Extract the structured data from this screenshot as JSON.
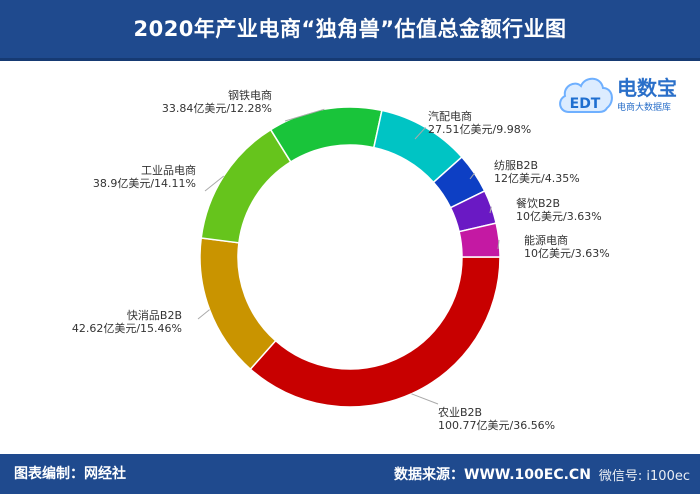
{
  "header": {
    "title": "2020年产业电商“独角兽”估值总金额行业图"
  },
  "logo": {
    "brand": "电数宝",
    "tagline": "电商大数据库",
    "icon": "cloud-edt-icon",
    "mark": "EDT"
  },
  "footer": {
    "left": "图表编制：网经社",
    "right": "数据来源：WWW.100EC.CN",
    "wechat": "微信号: i100ec"
  },
  "colors": {
    "header_bg": "#1f4a8e"
  },
  "chart_data": {
    "type": "pie",
    "donut": true,
    "title": "2020年产业电商“独角兽”估值总金额行业图",
    "slices": [
      {
        "name": "农业B2B",
        "label": "100.77亿美元/36.56%",
        "value": 100.77,
        "percent": 36.56,
        "color": "#c80000"
      },
      {
        "name": "快消品B2B",
        "label": "42.62亿美元/15.46%",
        "value": 42.62,
        "percent": 15.46,
        "color": "#c99400"
      },
      {
        "name": "工业品电商",
        "label": "38.9亿美元/14.11%",
        "value": 38.9,
        "percent": 14.11,
        "color": "#66c41c"
      },
      {
        "name": "钢铁电商",
        "label": "33.84亿美元/12.28%",
        "value": 33.84,
        "percent": 12.28,
        "color": "#19c43a"
      },
      {
        "name": "汽配电商",
        "label": "27.51亿美元/9.98%",
        "value": 27.51,
        "percent": 9.98,
        "color": "#00c4c4"
      },
      {
        "name": "纺服B2B",
        "label": "12亿美元/4.35%",
        "value": 12,
        "percent": 4.35,
        "color": "#0d3fc4"
      },
      {
        "name": "餐饮B2B",
        "label": "10亿美元/3.63%",
        "value": 10,
        "percent": 3.63,
        "color": "#6a19c4"
      },
      {
        "name": "能源电商",
        "label": "10亿美元/3.63%",
        "value": 10,
        "percent": 3.63,
        "color": "#c419a3"
      }
    ]
  }
}
